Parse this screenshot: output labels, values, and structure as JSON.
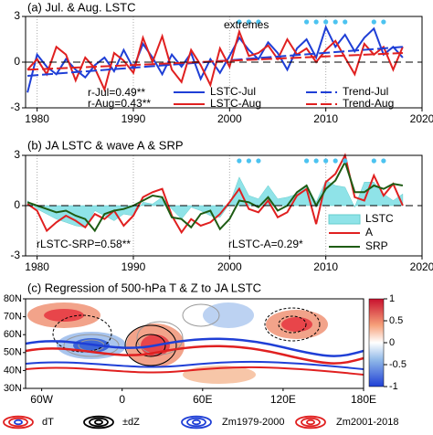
{
  "chart_data": [
    {
      "type": "line",
      "title": "(a) Jul. & Aug. LSTC",
      "x": [
        1979,
        1980,
        1981,
        1982,
        1983,
        1984,
        1985,
        1986,
        1987,
        1988,
        1989,
        1990,
        1991,
        1992,
        1993,
        1994,
        1995,
        1996,
        1997,
        1998,
        1999,
        2000,
        2001,
        2002,
        2003,
        2004,
        2005,
        2006,
        2007,
        2008,
        2009,
        2010,
        2011,
        2012,
        2013,
        2014,
        2015,
        2016,
        2017,
        2018
      ],
      "series": [
        {
          "name": "LSTC-Jul",
          "color": "#1f3fd6",
          "values": [
            -2.0,
            0.5,
            -0.3,
            -0.8,
            0.2,
            -0.5,
            -1.0,
            -0.2,
            0.3,
            -0.6,
            0.8,
            -0.4,
            1.2,
            0.3,
            -0.8,
            0.5,
            -0.3,
            0.6,
            -1.1,
            0.2,
            -0.7,
            0.4,
            1.6,
            0.8,
            0.2,
            1.3,
            0.6,
            -0.5,
            0.9,
            1.5,
            0.3,
            2.3,
            1.0,
            1.8,
            0.7,
            1.6,
            2.2,
            0.5,
            1.0,
            0.3
          ]
        },
        {
          "name": "LSTC-Aug",
          "color": "#e02020",
          "values": [
            -0.5,
            0.2,
            -0.8,
            1.0,
            0.5,
            -1.2,
            0.3,
            -0.4,
            -1.8,
            0.6,
            0.1,
            -0.7,
            1.6,
            0.0,
            1.7,
            -0.5,
            -1.3,
            0.8,
            -0.2,
            -1.5,
            0.9,
            -0.3,
            2.0,
            0.4,
            0.6,
            1.1,
            0.2,
            1.5,
            0.5,
            0.9,
            0.0,
            0.8,
            1.4,
            0.3,
            -0.8,
            1.2,
            0.5,
            1.0,
            -0.5,
            1.0
          ]
        },
        {
          "name": "Trend-Jul",
          "color": "#1f3fd6",
          "dash": true,
          "x": [
            1979,
            2018
          ],
          "values": [
            -0.9,
            1.0
          ]
        },
        {
          "name": "Trend-Aug",
          "color": "#e02020",
          "dash": true,
          "x": [
            1979,
            2018
          ],
          "values": [
            -0.5,
            0.6
          ]
        }
      ],
      "extreme_years": [
        2001,
        2002,
        2003,
        2008,
        2009,
        2010,
        2011,
        2012,
        2015,
        2016
      ],
      "annotations": [
        "extremes",
        "r-Jul=0.49**",
        "r-Aug=0.43**"
      ],
      "xlim": [
        1978.8,
        2020
      ],
      "xticks": [
        1980,
        1990,
        2000,
        2010,
        2020
      ],
      "ylim": [
        -3,
        3
      ],
      "yticks": [
        -3,
        0,
        3
      ],
      "grid": true
    },
    {
      "type": "line",
      "title": "(b) JA LSTC & wave A & SRP",
      "x": [
        1979,
        1980,
        1981,
        1982,
        1983,
        1984,
        1985,
        1986,
        1987,
        1988,
        1989,
        1990,
        1991,
        1992,
        1993,
        1994,
        1995,
        1996,
        1997,
        1998,
        1999,
        2000,
        2001,
        2002,
        2003,
        2004,
        2005,
        2006,
        2007,
        2008,
        2009,
        2010,
        2011,
        2012,
        2013,
        2014,
        2015,
        2016,
        2017,
        2018
      ],
      "series": [
        {
          "name": "LSTC",
          "color": "#8fe3e8",
          "area": true,
          "values": [
            0.3,
            -0.2,
            -0.5,
            -0.8,
            -1.0,
            -1.2,
            -1.3,
            -0.3,
            -0.6,
            -0.9,
            -0.5,
            -0.6,
            0.2,
            0.1,
            0.5,
            -0.2,
            -0.8,
            -0.1,
            -0.3,
            -0.6,
            -0.7,
            0.1,
            1.7,
            0.6,
            0.4,
            1.2,
            0.4,
            0.5,
            0.7,
            1.2,
            0.2,
            1.5,
            1.2,
            1.1,
            -0.1,
            1.4,
            1.4,
            0.7,
            0.3,
            0.7
          ]
        },
        {
          "name": "A",
          "color": "#e02020",
          "values": [
            0.1,
            -0.3,
            -1.5,
            -1.0,
            -0.6,
            -0.9,
            -1.3,
            -0.5,
            -0.8,
            -0.3,
            -1.2,
            -0.6,
            0.5,
            0.8,
            1.0,
            -0.6,
            -1.6,
            -0.8,
            -1.2,
            -1.0,
            -0.5,
            0.2,
            1.0,
            -0.2,
            -0.4,
            0.3,
            -0.7,
            -0.4,
            0.6,
            1.0,
            -1.1,
            1.4,
            1.9,
            3.0,
            0.5,
            0.3,
            1.8,
            0.6,
            1.3,
            0.0
          ]
        },
        {
          "name": "SRP",
          "color": "#1e5c14",
          "values": [
            0.2,
            0.0,
            -0.2,
            -0.4,
            -0.3,
            -0.6,
            -0.8,
            -1.5,
            -0.5,
            -0.3,
            -0.2,
            0.0,
            0.3,
            0.6,
            0.5,
            -0.7,
            -0.8,
            -1.3,
            -0.5,
            -0.3,
            -1.4,
            -0.8,
            0.3,
            0.2,
            -0.1,
            0.5,
            -0.3,
            0.0,
            0.8,
            1.2,
            0.0,
            1.0,
            1.5,
            2.6,
            0.8,
            0.8,
            1.2,
            1.0,
            1.3,
            1.2
          ]
        }
      ],
      "extreme_years": [
        2001,
        2002,
        2003,
        2008,
        2009,
        2010,
        2011,
        2012,
        2015,
        2016
      ],
      "annotations": [
        "rLSTC-SRP=0.58**",
        "rLSTC-A=0.29*"
      ],
      "xlim": [
        1978.8,
        2020
      ],
      "xticks": [
        1980,
        1990,
        2000,
        2010,
        2020
      ],
      "ylim": [
        -3,
        3
      ],
      "yticks": [
        -3,
        0,
        3
      ],
      "grid": true
    },
    {
      "type": "map",
      "title": "(c) Regression of 500-hPa T & Z to JA LSTC",
      "latlim": [
        30,
        80
      ],
      "latticks": [
        {
          "value": 80,
          "label": "80N"
        },
        {
          "value": 70,
          "label": "70N"
        },
        {
          "value": 60,
          "label": "60N"
        },
        {
          "value": 50,
          "label": "50N"
        },
        {
          "value": 40,
          "label": "40N"
        },
        {
          "value": 30,
          "label": "30N"
        }
      ],
      "lonlim": [
        -72,
        180
      ],
      "lonticks": [
        {
          "value": -60,
          "label": "60W"
        },
        {
          "value": 0,
          "label": "0"
        },
        {
          "value": 60,
          "label": "60E"
        },
        {
          "value": 120,
          "label": "120E"
        },
        {
          "value": 180,
          "label": "180E"
        }
      ],
      "clim": [
        -1,
        1
      ],
      "cticks": [
        1,
        0.5,
        0,
        -0.5,
        -1
      ],
      "legend": [
        {
          "name": "dT",
          "color": "#e02020"
        },
        {
          "name": "±dZ",
          "color": "#000000"
        },
        {
          "name": "Zm1979-2000",
          "color": "#1f3fd6"
        },
        {
          "name": "Zm2001-2018",
          "color": "#e02020"
        }
      ]
    }
  ]
}
